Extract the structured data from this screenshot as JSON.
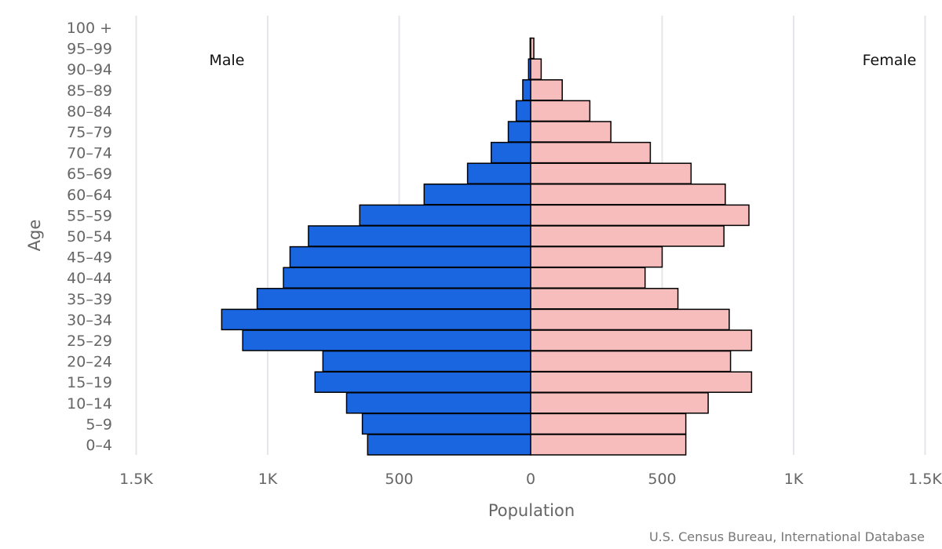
{
  "chart_data": {
    "type": "bar",
    "orientation": "horizontal",
    "chart_style": "population-pyramid",
    "categories": [
      "0-4",
      "5-9",
      "10-14",
      "15-19",
      "20-24",
      "25-29",
      "30-34",
      "35-39",
      "40-44",
      "45-49",
      "50-54",
      "55-59",
      "60-64",
      "65-69",
      "70-74",
      "75-79",
      "80-84",
      "85-89",
      "90-94",
      "95-99",
      "100 +"
    ],
    "series": [
      {
        "name": "Male",
        "color": "#1a66e0",
        "values": [
          620,
          640,
          700,
          820,
          790,
          1095,
          1175,
          1040,
          940,
          915,
          845,
          650,
          405,
          240,
          150,
          85,
          55,
          30,
          8,
          2,
          0
        ]
      },
      {
        "name": "Female",
        "color": "#f7bcbc",
        "values": [
          590,
          590,
          675,
          840,
          760,
          840,
          755,
          560,
          435,
          500,
          735,
          830,
          740,
          610,
          455,
          305,
          225,
          120,
          40,
          12,
          0
        ]
      }
    ],
    "xlabel": "Population",
    "ylabel": "Age",
    "xlim": [
      -1500,
      1500
    ],
    "x_ticks": [
      -1500,
      -1000,
      -500,
      0,
      500,
      1000,
      1500
    ],
    "x_tick_labels": [
      "1.5K",
      "1K",
      "500",
      "0",
      "500",
      "1K",
      "1.5K"
    ],
    "grid": "vertical",
    "side_labels": {
      "left": "Male",
      "right": "Female"
    },
    "credit": "U.S. Census Bureau, International Database"
  }
}
